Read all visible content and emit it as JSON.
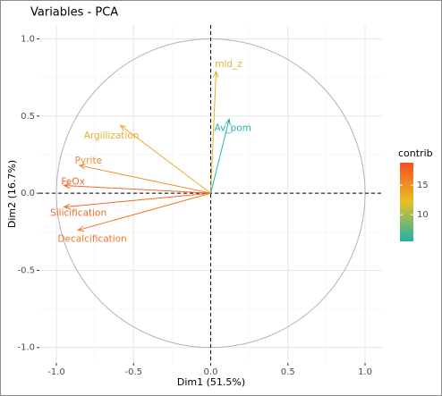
{
  "chart_data": {
    "type": "pca-variables",
    "title": "Variables - PCA",
    "x_label": "Dim1 (51.5%)",
    "y_label": "Dim2 (16.7%)",
    "xlim": [
      -1.11,
      1.11
    ],
    "ylim": [
      -1.1,
      1.09
    ],
    "xticks": [
      {
        "value": -1,
        "label": "-1.0"
      },
      -0.5,
      {
        "value": 0,
        "label": "0.0"
      },
      0.5,
      {
        "value": 1,
        "label": "1.0"
      }
    ],
    "yticks": [
      {
        "value": -1,
        "label": "-1.0"
      },
      -0.5,
      {
        "value": 0,
        "label": "0.0"
      },
      0.5,
      {
        "value": 1,
        "label": "1.0"
      }
    ],
    "grid": true,
    "variables": [
      "mid_z",
      "Av_pom",
      "Argillization",
      "Pyrite",
      "FeOx",
      "Silicification",
      "Decalcification"
    ],
    "x": [
      0.035,
      0.12,
      -0.585,
      -0.85,
      -0.95,
      -0.95,
      -0.86
    ],
    "y": [
      0.79,
      0.48,
      0.44,
      0.18,
      0.05,
      -0.09,
      -0.24
    ],
    "contrib": [
      13,
      6,
      14,
      17,
      18,
      18,
      17
    ],
    "colors": [
      "#e0b52a",
      "#2ab0ab",
      "#e8b02f",
      "#ef8a30",
      "#f0672b",
      "#f06a2b",
      "#ef7a2e"
    ],
    "colorbar": {
      "title": "contrib",
      "lim": [
        5.5,
        18.8
      ],
      "ticks": [
        10,
        15
      ],
      "colors": [
        "#20b2aa",
        "#e6c026",
        "#fc4e1f"
      ]
    }
  }
}
